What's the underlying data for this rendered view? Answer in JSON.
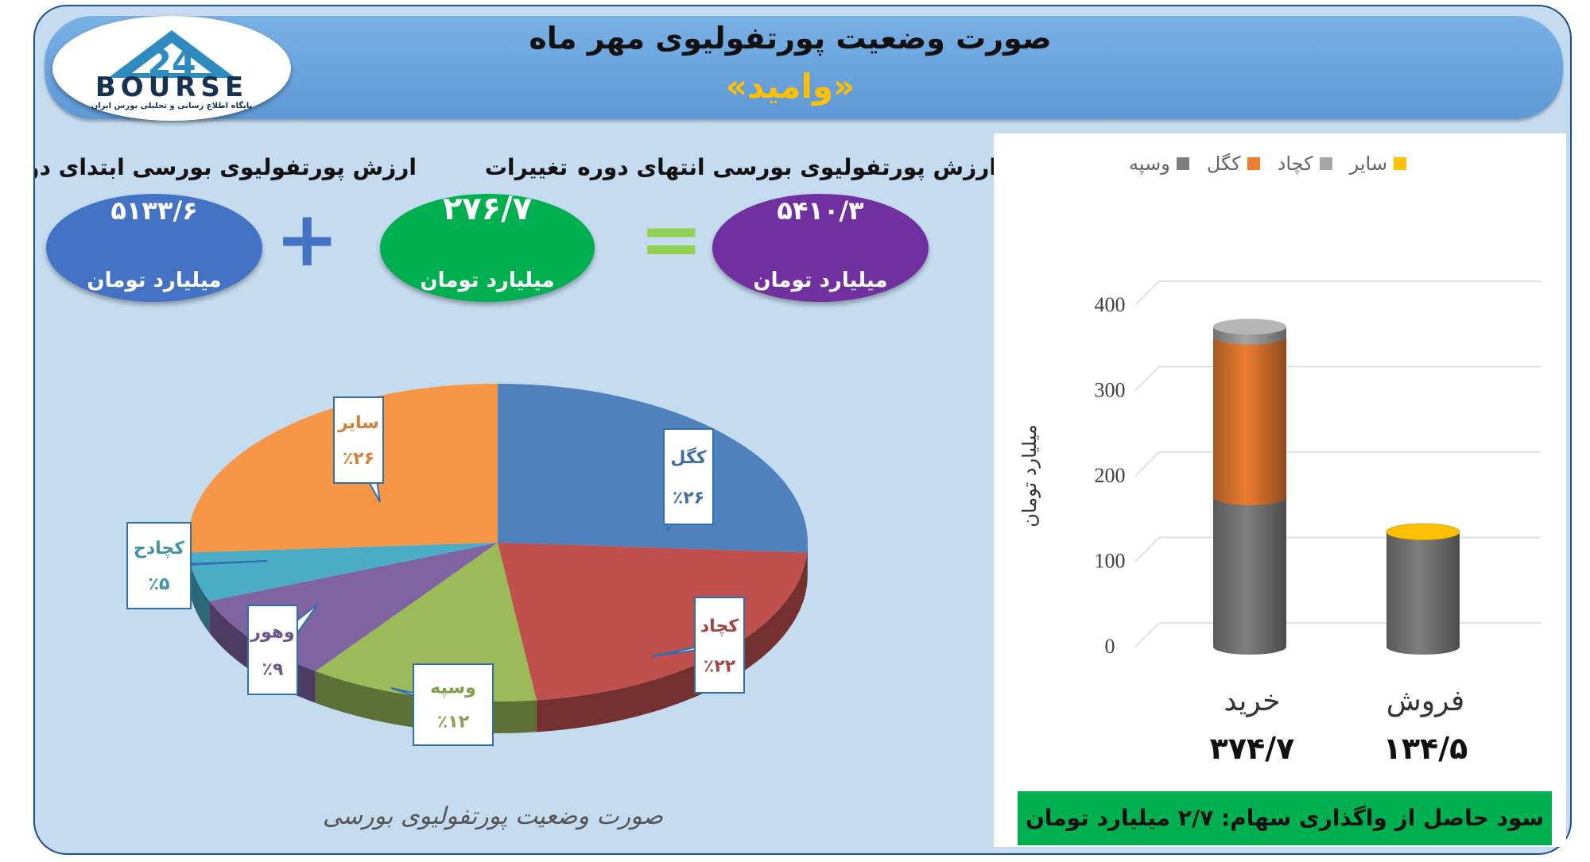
{
  "header": {
    "title": "صورت وضعیت پورتفولیوی مهر ماه",
    "subtitle": "«وامید»",
    "logo_text": "BOURSE",
    "logo_tagline": "پایگاه اطلاع رسانی و تحلیلی بورس ایران"
  },
  "overview": {
    "start": {
      "label": "ارزش پورتفولیوی بورسی ابتدای دوره",
      "value": "۵۱۳۳/۶",
      "unit": "میلیارد تومان",
      "color": "#4472c4"
    },
    "change": {
      "label": "تغییرات",
      "value": "۲۷۶/۷",
      "unit": "میلیارد تومان",
      "color": "#00b050"
    },
    "end": {
      "label": "ارزش پورتفولیوی بورسی انتهای دوره",
      "value": "۵۴۱۰/۳",
      "unit": "میلیارد تومان",
      "color": "#7030a0"
    },
    "plus_symbol": "+",
    "equals_symbol": "="
  },
  "pie_caption": "صورت وضعیت پورتفولیوی بورسی",
  "profit_note": "سود حاصل از واگذاری سهام: ۲/۷ میلیارد تومان",
  "chart_data": [
    {
      "type": "pie",
      "title": "",
      "slices": [
        {
          "label": "کگل",
          "value": 26,
          "text": "٪۲۶",
          "color": "#4f81bd"
        },
        {
          "label": "کچاد",
          "value": 22,
          "text": "٪۲۲",
          "color": "#c0504d"
        },
        {
          "label": "وسپه",
          "value": 12,
          "text": "٪۱۲",
          "color": "#9bbb59"
        },
        {
          "label": "وهور",
          "value": 9,
          "text": "٪۹",
          "color": "#8064a2"
        },
        {
          "label": "کچادح",
          "value": 5,
          "text": "٪۵",
          "color": "#4bacc6"
        },
        {
          "label": "سایر",
          "value": 26,
          "text": "٪۲۶",
          "color": "#f79646"
        }
      ]
    },
    {
      "type": "bar",
      "stacked": true,
      "categories": [
        "خرید",
        "فروش"
      ],
      "totals_text": [
        "۳۷۴/۷",
        "۱۳۴/۵"
      ],
      "series": [
        {
          "name": "وسپه",
          "values": [
            175,
            134.5
          ],
          "color": "#7f7f7f"
        },
        {
          "name": "کگل",
          "values": [
            188,
            0
          ],
          "color": "#ed7d31"
        },
        {
          "name": "کچاد",
          "values": [
            11.7,
            0
          ],
          "color": "#a5a5a5"
        },
        {
          "name": "سایر",
          "values": [
            0,
            0
          ],
          "color": "#ffc000"
        }
      ],
      "ylabel": "میلیارد تومان",
      "ylim": [
        0,
        400
      ],
      "yticks": [
        0,
        100,
        200,
        300,
        400
      ],
      "grid": true,
      "legend": "top"
    }
  ]
}
